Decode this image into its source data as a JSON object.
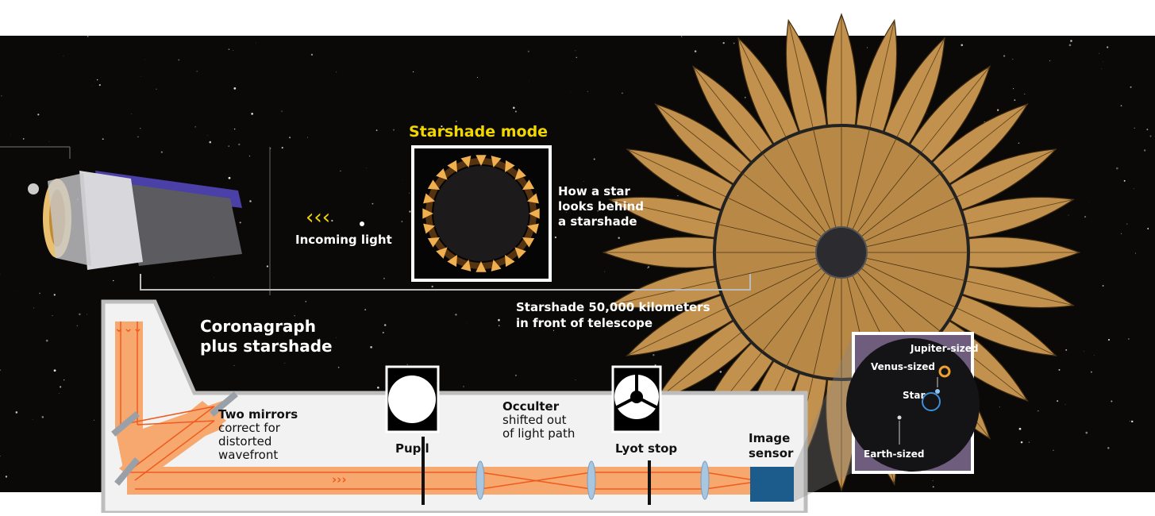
{
  "starshade_mode": {
    "title": "Starshade mode",
    "caption": [
      "How a star",
      "looks behind",
      "a starshade"
    ]
  },
  "incoming_light": "Incoming light",
  "distance_label": [
    "Starshade  50,000 kilometers",
    "in front of telescope"
  ],
  "coronagraph": {
    "title": [
      "Coronagraph",
      "plus starshade"
    ],
    "mirrors": {
      "title": "Two mirrors",
      "text": [
        "correct for",
        "distorted",
        "wavefront"
      ]
    },
    "pupil": "Pupil",
    "occulter": {
      "title": "Occulter",
      "text": [
        "shifted out",
        "of light path"
      ]
    },
    "lyot_stop": "Lyot stop",
    "image_sensor": [
      "Image",
      "sensor"
    ]
  },
  "sensor_image": {
    "labels": [
      "Jupiter-sized",
      "Venus-sized",
      "Star",
      "Earth-sized"
    ]
  }
}
